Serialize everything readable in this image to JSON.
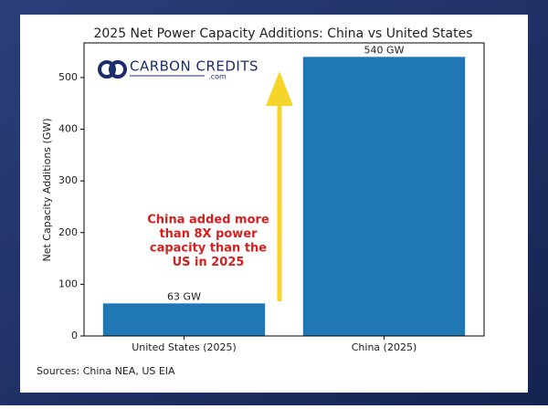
{
  "chart_data": {
    "type": "bar",
    "title": "2025 Net Power Capacity Additions: China vs United States",
    "ylabel": "Net Capacity Additions (GW)",
    "categories": [
      "United States (2025)",
      "China (2025)"
    ],
    "values": [
      63,
      540
    ],
    "value_labels": [
      "63 GW",
      "540 GW"
    ],
    "color": "#1f77b4",
    "ylim": [
      0,
      567
    ],
    "yticks": [
      0,
      100,
      200,
      300,
      400,
      500
    ],
    "grid": false,
    "annotation": [
      "China added more",
      "than 8X power",
      "capacity than the",
      "US in 2025"
    ],
    "source": "Sources: China NEA, US EIA",
    "logo": {
      "name": "CARBON CREDITS",
      "domain": ".com"
    }
  }
}
